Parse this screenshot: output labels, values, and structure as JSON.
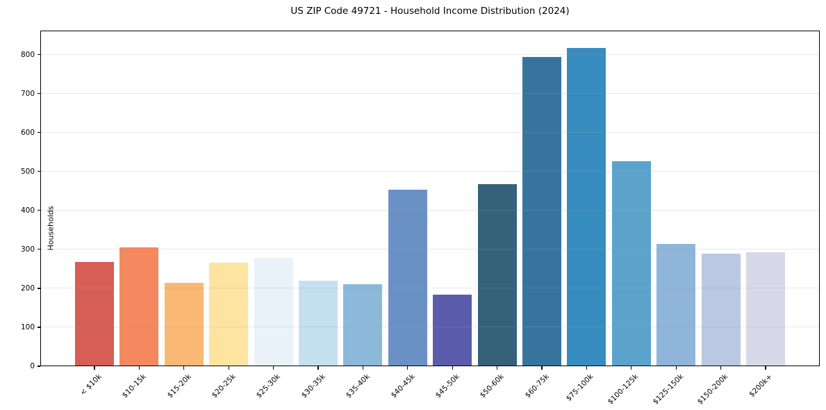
{
  "title": "US ZIP Code 49721 - Household Income Distribution (2024)",
  "chart_data": {
    "type": "bar",
    "title": "US ZIP Code 49721 - Household Income Distribution (2024)",
    "xlabel": "",
    "ylabel": "Households",
    "categories": [
      "< $10k",
      "$10-15k",
      "$15-20k",
      "$20-25k",
      "$25-30k",
      "$30-35k",
      "$35-40k",
      "$40-45k",
      "$45-50k",
      "$50-60k",
      "$60-75k",
      "$75-100k",
      "$100-125k",
      "$125-150k",
      "$150-200k",
      "$200k+"
    ],
    "values": [
      268,
      305,
      215,
      266,
      278,
      220,
      210,
      453,
      184,
      467,
      794,
      817,
      526,
      315,
      290,
      293
    ],
    "bar_colors": [
      "#d65e54",
      "#f5885f",
      "#fab875",
      "#fde4a0",
      "#e9f2f8",
      "#c4e0ef",
      "#8cb8da",
      "#6a91c5",
      "#5c5cac",
      "#35617a",
      "#36749e",
      "#378cbf",
      "#5ca3cc",
      "#90b5da",
      "#bac8e2",
      "#d8d9e8"
    ],
    "yticks": [
      0,
      100,
      200,
      300,
      400,
      500,
      600,
      700,
      800
    ],
    "ylim": [
      0,
      862
    ],
    "grid": "horizontal",
    "grid_color": "#eaeaea",
    "legend": "none",
    "background_color": "#ffffff",
    "axis_color": "#000000"
  }
}
